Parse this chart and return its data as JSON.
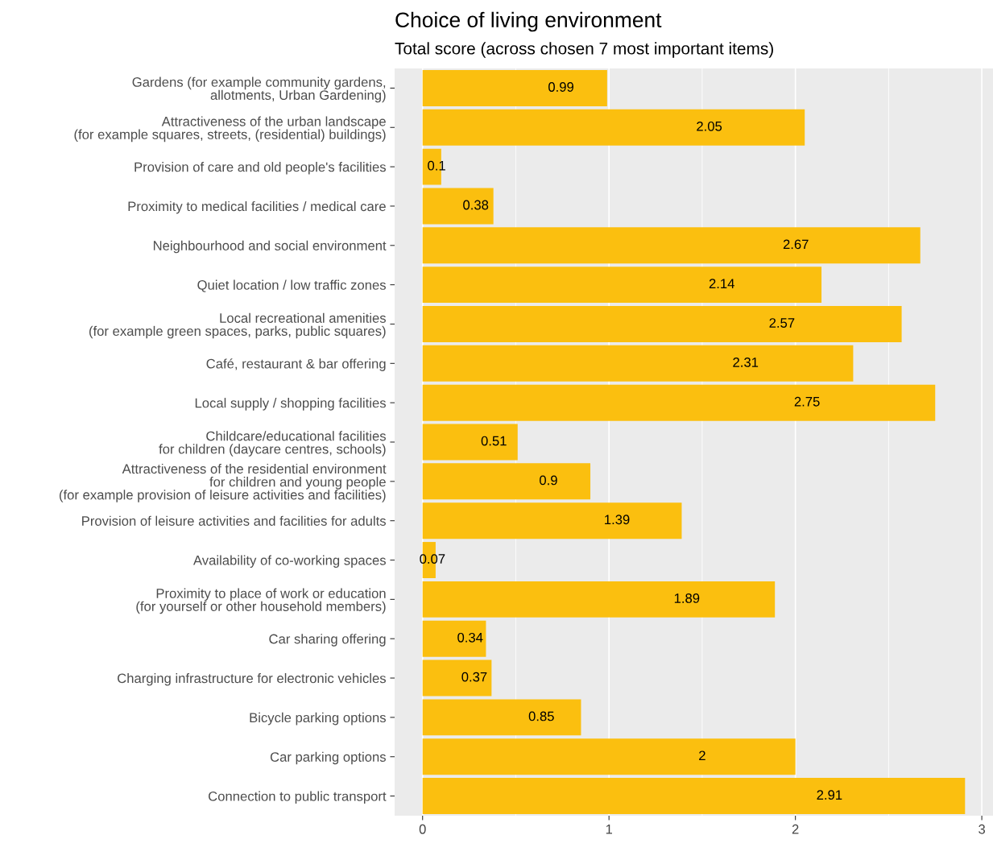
{
  "chart_data": {
    "type": "bar",
    "orientation": "horizontal",
    "title": "Choice of living environment",
    "subtitle": "Total score (across chosen 7 most important items)",
    "categories": [
      "Gardens (for example community gardens,\nallotments, Urban Gardening)",
      "Attractiveness of the urban landscape\n(for example squares, streets, (residential) buildings)",
      "Provision of care and old people's facilities",
      "Proximity to medical facilities / medical care",
      "Neighbourhood and social environment",
      "Quiet location / low traffic zones",
      "Local recreational amenities\n(for example green spaces, parks, public squares)",
      "Café, restaurant & bar offering",
      "Local supply / shopping facilities",
      "Childcare/educational facilities\nfor children (daycare centres, schools)",
      "Attractiveness of the residential environment\nfor children and young people\n(for example provision of leisure activities and facilities)",
      "Provision of leisure activities and facilities for adults",
      "Availability of co-working spaces",
      "Proximity to place of work or education\n(for yourself or other household members)",
      "Car sharing offering",
      "Charging infrastructure for electronic vehicles",
      "Bicycle parking options",
      "Car parking options",
      "Connection to public transport"
    ],
    "values": [
      0.99,
      2.05,
      0.1,
      0.38,
      2.67,
      2.14,
      2.57,
      2.31,
      2.75,
      0.51,
      0.9,
      1.39,
      0.07,
      1.89,
      0.34,
      0.37,
      0.85,
      2,
      2.91
    ],
    "color": "#fbbf0f",
    "data_labels": true,
    "xlim": [
      -0.15,
      3.06
    ],
    "xticks": [
      0,
      1,
      2,
      3
    ],
    "grid": "x"
  }
}
